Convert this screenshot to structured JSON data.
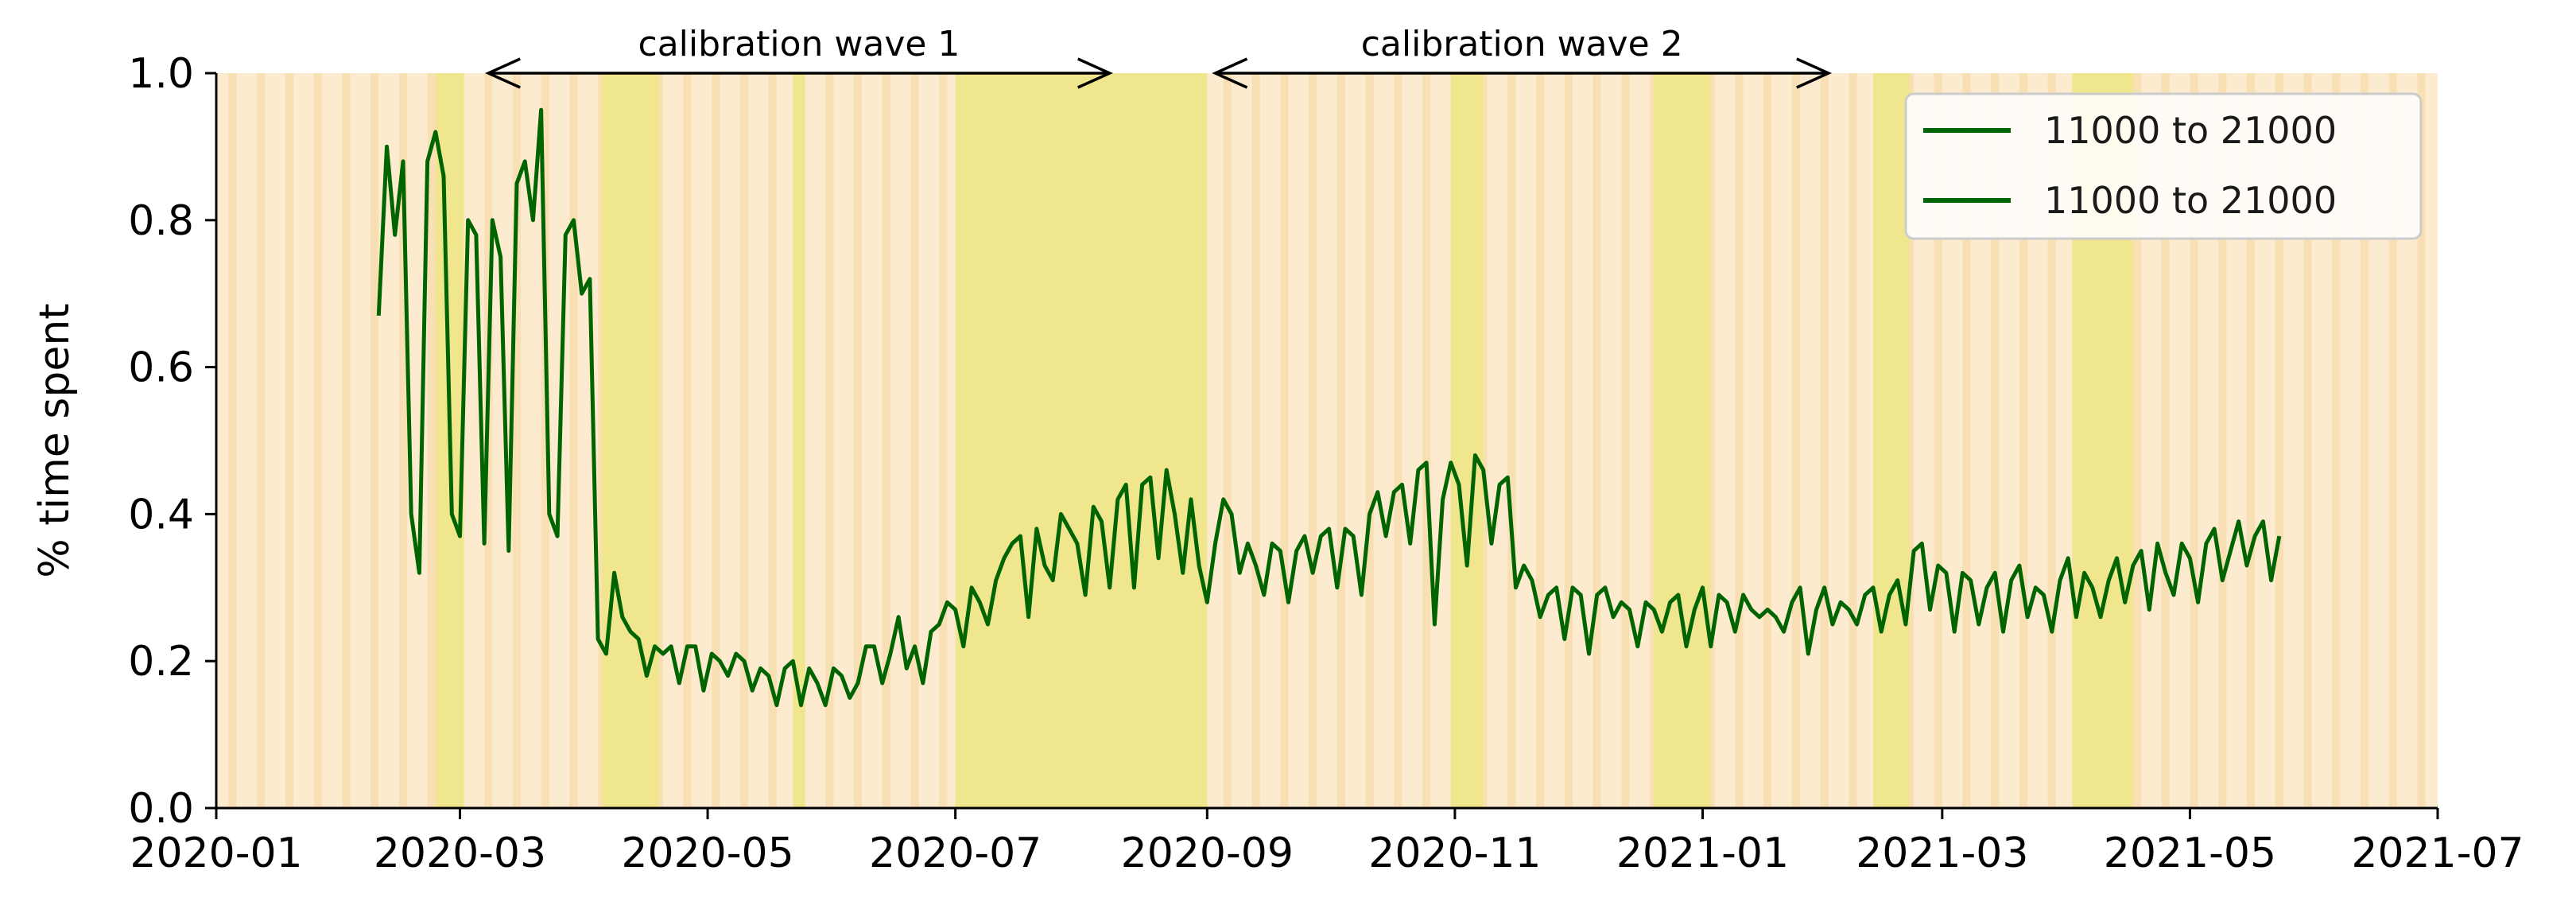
{
  "chart_data": {
    "type": "line",
    "ylabel": "% time spent",
    "xlabel": "",
    "ylim": [
      0.0,
      1.0
    ],
    "xlim": [
      "2020-01-01",
      "2021-07-01"
    ],
    "yticks": [
      0.0,
      0.2,
      0.4,
      0.6,
      0.8,
      1.0
    ],
    "ytick_labels": [
      "0.0",
      "0.2",
      "0.4",
      "0.6",
      "0.8",
      "1.0"
    ],
    "xticks": [
      "2020-01-01",
      "2020-03-01",
      "2020-05-01",
      "2020-07-01",
      "2020-09-01",
      "2020-11-01",
      "2021-01-01",
      "2021-03-01",
      "2021-05-01",
      "2021-07-01"
    ],
    "xtick_labels": [
      "2020-01",
      "2020-03",
      "2020-05",
      "2020-07",
      "2020-09",
      "2020-11",
      "2021-01",
      "2021-03",
      "2021-05",
      "2021-07"
    ],
    "legend_position": "top-right",
    "legend": [
      "11000 to 21000",
      "11000 to 21000"
    ],
    "series": [
      {
        "name": "11000 to 21000",
        "color": "#006400",
        "start_date": "2020-02-10",
        "interval_days": 2,
        "values": [
          0.67,
          0.9,
          0.78,
          0.88,
          0.4,
          0.32,
          0.88,
          0.92,
          0.86,
          0.4,
          0.37,
          0.8,
          0.78,
          0.36,
          0.8,
          0.75,
          0.35,
          0.85,
          0.88,
          0.8,
          0.95,
          0.4,
          0.37,
          0.78,
          0.8,
          0.7,
          0.72,
          0.23,
          0.21,
          0.32,
          0.26,
          0.24,
          0.23,
          0.18,
          0.22,
          0.21,
          0.22,
          0.17,
          0.22,
          0.22,
          0.16,
          0.21,
          0.2,
          0.18,
          0.21,
          0.2,
          0.16,
          0.19,
          0.18,
          0.14,
          0.19,
          0.2,
          0.14,
          0.19,
          0.17,
          0.14,
          0.19,
          0.18,
          0.15,
          0.17,
          0.22,
          0.22,
          0.17,
          0.21,
          0.26,
          0.19,
          0.22,
          0.17,
          0.24,
          0.25,
          0.28,
          0.27,
          0.22,
          0.3,
          0.28,
          0.25,
          0.31,
          0.34,
          0.36,
          0.37,
          0.26,
          0.38,
          0.33,
          0.31,
          0.4,
          0.38,
          0.36,
          0.29,
          0.41,
          0.39,
          0.3,
          0.42,
          0.44,
          0.3,
          0.44,
          0.45,
          0.34,
          0.46,
          0.4,
          0.32,
          0.42,
          0.33,
          0.28,
          0.36,
          0.42,
          0.4,
          0.32,
          0.36,
          0.33,
          0.29,
          0.36,
          0.35,
          0.28,
          0.35,
          0.37,
          0.32,
          0.37,
          0.38,
          0.3,
          0.38,
          0.37,
          0.29,
          0.4,
          0.43,
          0.37,
          0.43,
          0.44,
          0.36,
          0.46,
          0.47,
          0.25,
          0.42,
          0.47,
          0.44,
          0.33,
          0.48,
          0.46,
          0.36,
          0.44,
          0.45,
          0.3,
          0.33,
          0.31,
          0.26,
          0.29,
          0.3,
          0.23,
          0.3,
          0.29,
          0.21,
          0.29,
          0.3,
          0.26,
          0.28,
          0.27,
          0.22,
          0.28,
          0.27,
          0.24,
          0.28,
          0.29,
          0.22,
          0.27,
          0.3,
          0.22,
          0.29,
          0.28,
          0.24,
          0.29,
          0.27,
          0.26,
          0.27,
          0.26,
          0.24,
          0.28,
          0.3,
          0.21,
          0.27,
          0.3,
          0.25,
          0.28,
          0.27,
          0.25,
          0.29,
          0.3,
          0.24,
          0.29,
          0.31,
          0.25,
          0.35,
          0.36,
          0.27,
          0.33,
          0.32,
          0.24,
          0.32,
          0.31,
          0.25,
          0.3,
          0.32,
          0.24,
          0.31,
          0.33,
          0.26,
          0.3,
          0.29,
          0.24,
          0.31,
          0.34,
          0.26,
          0.32,
          0.3,
          0.26,
          0.31,
          0.34,
          0.28,
          0.33,
          0.35,
          0.27,
          0.36,
          0.32,
          0.29,
          0.36,
          0.34,
          0.28,
          0.36,
          0.38,
          0.31,
          0.35,
          0.39,
          0.33,
          0.37,
          0.39,
          0.31,
          0.37
        ]
      },
      {
        "name": "11000 to 21000",
        "color": "#006400",
        "start_date": "2020-02-10",
        "interval_days": 2,
        "values": []
      }
    ],
    "shading": {
      "colors": {
        "light": "#fdebd0",
        "mid": "#f9dfb4",
        "yellow": "#efe68e"
      },
      "yellow_bands": [
        [
          "2020-02-24",
          "2020-03-02"
        ],
        [
          "2020-04-05",
          "2020-04-19"
        ],
        [
          "2020-05-22",
          "2020-05-25"
        ],
        [
          "2020-07-01",
          "2020-09-01"
        ],
        [
          "2020-10-31",
          "2020-11-08"
        ],
        [
          "2020-12-20",
          "2021-01-03"
        ],
        [
          "2021-02-12",
          "2021-02-21"
        ],
        [
          "2021-04-02",
          "2021-04-17"
        ]
      ]
    },
    "annotations": [
      {
        "text": "calibration wave 1",
        "from": "2020-03-08",
        "to": "2020-08-08"
      },
      {
        "text": "calibration wave 2",
        "from": "2020-09-03",
        "to": "2021-02-01"
      }
    ]
  }
}
